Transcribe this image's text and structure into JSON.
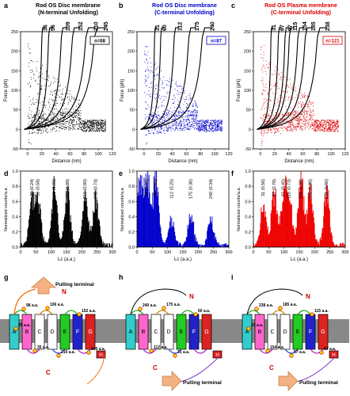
{
  "panel_letters": [
    "a",
    "b",
    "c",
    "d",
    "e",
    "f",
    "g",
    "h",
    "i"
  ],
  "top_plots": [
    {
      "letter": "a",
      "title1": "Rod OS Disc membrane",
      "title2": "(N-terminal Unfolding)",
      "color": "#000000",
      "n": "n=68",
      "ylabel": "Force (pN)",
      "xlabel": "Distance (nm)",
      "yticks": [
        "250",
        "200",
        "150",
        "100",
        "50",
        "0",
        "-50"
      ],
      "xticks": [
        "0",
        "20",
        "40",
        "60",
        "80",
        "100",
        "120"
      ],
      "peaks": [
        "36",
        "56",
        "109",
        "152",
        "210",
        "245"
      ],
      "peak_x": [
        24,
        35,
        56,
        74,
        96,
        110
      ]
    },
    {
      "letter": "b",
      "title1": "Rod OS Disc membrane",
      "title2": "(C-terminal Unfolding)",
      "color": "#0000cc",
      "n": "n=87",
      "ylabel": "Force (pN)",
      "xlabel": "Distance (nm)",
      "yticks": [
        "250",
        "200",
        "150",
        "100",
        "50",
        "0",
        "-50"
      ],
      "xticks": [
        "0",
        "20",
        "40",
        "60",
        "80",
        "100",
        "120"
      ],
      "peaks": [
        "31",
        "60",
        "112",
        "175",
        "240"
      ],
      "peak_x": [
        18,
        28,
        50,
        74,
        96
      ]
    },
    {
      "letter": "c",
      "title1": "Rod OS Plasma membrane",
      "title2": "(C-terminal Unfolding)",
      "color": "#dd0000",
      "n": "n=121",
      "ylabel": "Force (pN)",
      "xlabel": "Distance (nm)",
      "yticks": [
        "250",
        "200",
        "150",
        "100",
        "50",
        "0",
        "-50"
      ],
      "xticks": [
        "0",
        "20",
        "40",
        "60",
        "80",
        "100",
        "120"
      ],
      "peaks": [
        "31",
        "67",
        "97",
        "115",
        "154",
        "185",
        "238"
      ],
      "peak_x": [
        18,
        30,
        41,
        48,
        62,
        74,
        94
      ]
    }
  ],
  "hist_plots": [
    {
      "letter": "d",
      "color": "#000000",
      "ylabel": "Normalized counts/a.a.",
      "xlabel": "Lc (a.a.)",
      "yticks": [
        "1.0",
        "0.8",
        "0.6",
        "0.4",
        "0.2",
        "0.0"
      ],
      "xticks": [
        "0",
        "50",
        "100",
        "150",
        "200",
        "250",
        "300"
      ],
      "annotations": [
        "36 (0.24)",
        "56 (0.58)",
        "109 (1.00)",
        "152 (0.88)",
        "210 (0.80)",
        "245 (0.74)"
      ],
      "peaks": [
        36,
        56,
        109,
        152,
        210,
        245
      ],
      "heights": [
        0.55,
        0.62,
        0.78,
        0.68,
        0.64,
        0.62
      ]
    },
    {
      "letter": "e",
      "color": "#0000cc",
      "ylabel": "Normalized counts/a.a.",
      "xlabel": "Lc (a.a.)",
      "yticks": [
        "1.0",
        "0.8",
        "0.6",
        "0.4",
        "0.2",
        "0.0"
      ],
      "xticks": [
        "0",
        "50",
        "100",
        "150",
        "200",
        "250",
        "300"
      ],
      "annotations": [
        "31 (0.96)",
        "60 (1.00)",
        "112 (0.25)",
        "175 (0.36)",
        "240 (0.34)"
      ],
      "peaks": [
        31,
        60,
        112,
        175,
        240
      ],
      "heights": [
        0.85,
        0.92,
        0.35,
        0.42,
        0.38
      ]
    },
    {
      "letter": "f",
      "color": "#ee0000",
      "ylabel": "Normalized counts/a.a.",
      "xlabel": "Lc (a.a.)",
      "yticks": [
        "1.0",
        "0.8",
        "0.6",
        "0.4",
        "0.2",
        "0.0"
      ],
      "xticks": [
        "0",
        "50",
        "100",
        "150",
        "200",
        "250",
        "300"
      ],
      "annotations": [
        "31 (0.56)",
        "67 (0.78)",
        "97 (0.45)",
        "115 (0.73)",
        "154 (1.00)",
        "185 (0.86)",
        "238 (0.80)"
      ],
      "peaks": [
        31,
        67,
        97,
        115,
        154,
        185,
        238
      ],
      "heights": [
        0.55,
        0.72,
        0.55,
        0.75,
        0.9,
        0.82,
        0.78
      ]
    }
  ],
  "topology": {
    "g": {
      "pulling": "Pulling terminal",
      "N": "N",
      "C": "C",
      "labels": [
        "98 a.a.",
        "106 a.a.",
        "35 a.a.",
        "152 a.a.",
        "210 a.a.",
        "245 a.a.",
        "35 a.a."
      ],
      "helices": [
        "A",
        "A2",
        "B",
        "C",
        "D",
        "E",
        "F",
        "G",
        "H"
      ]
    },
    "h": {
      "pulling": "Pulling terminal",
      "N": "N",
      "C": "C",
      "labels": [
        "240 a.a.",
        "175 a.a.",
        "112 a.a.",
        "60 a.a.",
        "31 a.a."
      ],
      "helices": [
        "A",
        "B",
        "C",
        "D",
        "E",
        "F",
        "G",
        "H"
      ]
    },
    "i": {
      "pulling": "Pulling terminal",
      "N": "N",
      "C": "C",
      "labels": [
        "238 a.a.",
        "185 a.a.",
        "154 a.a.",
        "115 a.a.",
        "97 a.a.",
        "67 a.a.",
        "31 a.a."
      ],
      "helices": [
        "A",
        "B",
        "C",
        "D",
        "E",
        "F",
        "F2",
        "G",
        "H"
      ]
    }
  },
  "colors": {
    "helix_A": "#33cccc",
    "helix_B": "#ff66cc",
    "helix_C": "#ffffff",
    "helix_D": "#ffffff",
    "helix_E": "#22cc22",
    "helix_F": "#2222cc",
    "helix_G": "#dd2222",
    "helix_H": "#dd2222",
    "membrane": "#888888"
  }
}
